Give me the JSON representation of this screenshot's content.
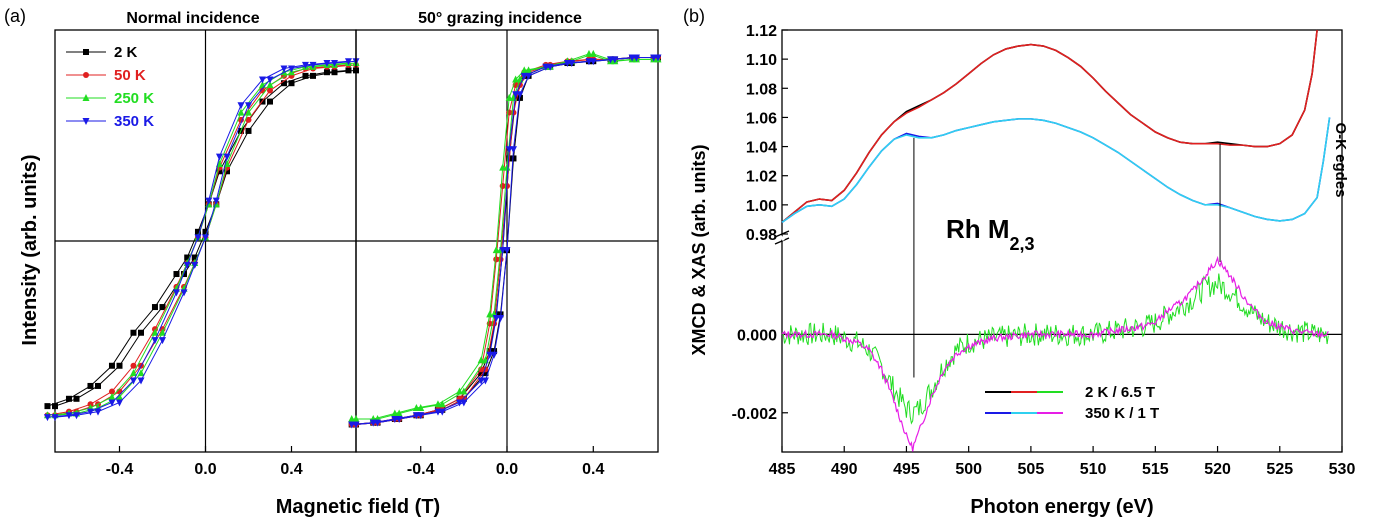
{
  "colors": {
    "black": "#000000",
    "red": "#e02020",
    "green": "#22dd22",
    "blue": "#1a1ae6",
    "cyan": "#2fd0f0",
    "magenta": "#e61ee6"
  },
  "panel_a": {
    "label": "(a)",
    "title_left": "Normal incidence",
    "title_right": "50° grazing incidence",
    "xlabel": "Magnetic field (T)",
    "ylabel": "Intensity (arb. units)"
  },
  "panel_b": {
    "label": "(b)",
    "xlabel": "Photon energy (eV)",
    "ylabel": "XMCD & XAS (arb. units)",
    "annotation": "Rh M",
    "annotation_sub": "2,3",
    "edge_label": "O-K egdes"
  },
  "chart_data": [
    {
      "type": "line",
      "title": "Normal incidence",
      "xlabel": "Magnetic field (T)",
      "ylabel": "Intensity (arb. units)",
      "xlim": [
        -0.7,
        0.7
      ],
      "ylim": [
        -1.15,
        1.15
      ],
      "xticks": [
        "-0.4",
        "0.0",
        "0.4"
      ],
      "xtick_values": [
        -0.4,
        0.0,
        0.4
      ],
      "legend": "top-left",
      "series": [
        {
          "name": "2 K",
          "color": "#000000",
          "marker": "square",
          "x": [
            -0.7,
            -0.6,
            -0.5,
            -0.4,
            -0.3,
            -0.2,
            -0.1,
            -0.05,
            0.0,
            0.05,
            0.1,
            0.2,
            0.3,
            0.4,
            0.5,
            0.6,
            0.7
          ],
          "y": [
            -0.9,
            -0.86,
            -0.79,
            -0.68,
            -0.5,
            -0.36,
            -0.18,
            -0.09,
            0.05,
            0.2,
            0.38,
            0.6,
            0.76,
            0.86,
            0.9,
            0.92,
            0.93
          ]
        },
        {
          "name": "50 K",
          "color": "#e02020",
          "marker": "circle",
          "x": [
            -0.7,
            -0.6,
            -0.5,
            -0.4,
            -0.3,
            -0.2,
            -0.1,
            -0.05,
            0.0,
            0.05,
            0.1,
            0.2,
            0.3,
            0.4,
            0.5,
            0.6,
            0.7
          ],
          "y": [
            -0.95,
            -0.93,
            -0.89,
            -0.82,
            -0.68,
            -0.48,
            -0.25,
            -0.12,
            0.02,
            0.2,
            0.4,
            0.66,
            0.82,
            0.9,
            0.94,
            0.95,
            0.96
          ]
        },
        {
          "name": "250 K",
          "color": "#22dd22",
          "marker": "triangle",
          "x": [
            -0.7,
            -0.6,
            -0.5,
            -0.4,
            -0.3,
            -0.2,
            -0.1,
            -0.05,
            0.0,
            0.05,
            0.1,
            0.2,
            0.3,
            0.4,
            0.5,
            0.6,
            0.7
          ],
          "y": [
            -0.95,
            -0.94,
            -0.91,
            -0.85,
            -0.72,
            -0.5,
            -0.26,
            -0.12,
            0.02,
            0.2,
            0.42,
            0.7,
            0.85,
            0.92,
            0.95,
            0.96,
            0.97
          ]
        },
        {
          "name": "350 K",
          "color": "#1a1ae6",
          "marker": "triangle-down",
          "x": [
            -0.7,
            -0.6,
            -0.5,
            -0.4,
            -0.3,
            -0.2,
            -0.1,
            -0.05,
            0.0,
            0.05,
            0.1,
            0.2,
            0.3,
            0.4,
            0.5,
            0.6,
            0.7
          ],
          "y": [
            -0.96,
            -0.95,
            -0.93,
            -0.88,
            -0.76,
            -0.54,
            -0.28,
            -0.13,
            0.02,
            0.22,
            0.46,
            0.74,
            0.88,
            0.94,
            0.96,
            0.97,
            0.98
          ]
        }
      ]
    },
    {
      "type": "line",
      "title": "50° grazing incidence",
      "xlabel": "Magnetic field (T)",
      "xlim": [
        -0.7,
        0.7
      ],
      "ylim": [
        -1.15,
        1.15
      ],
      "xticks": [
        "-0.4",
        "0.0",
        "0.4"
      ],
      "xtick_values": [
        -0.4,
        0.0,
        0.4
      ],
      "series": [
        {
          "name": "2 K",
          "color": "#000000",
          "marker": "square",
          "x": [
            -0.7,
            -0.6,
            -0.5,
            -0.4,
            -0.3,
            -0.2,
            -0.1,
            -0.06,
            -0.03,
            0.0,
            0.03,
            0.06,
            0.1,
            0.2,
            0.3,
            0.4,
            0.5,
            0.6,
            0.7
          ],
          "y": [
            -1.0,
            -0.99,
            -0.97,
            -0.95,
            -0.92,
            -0.86,
            -0.72,
            -0.6,
            -0.4,
            -0.05,
            0.45,
            0.78,
            0.9,
            0.95,
            0.97,
            0.98,
            0.99,
            1.0,
            1.0
          ]
        },
        {
          "name": "50 K",
          "color": "#e02020",
          "marker": "circle",
          "x": [
            -0.7,
            -0.6,
            -0.5,
            -0.4,
            -0.3,
            -0.2,
            -0.1,
            -0.06,
            -0.03,
            0.0,
            0.03,
            0.06,
            0.1,
            0.2,
            0.3,
            0.4,
            0.5,
            0.6,
            0.7
          ],
          "y": [
            -1.0,
            -0.99,
            -0.97,
            -0.95,
            -0.92,
            -0.86,
            -0.7,
            -0.45,
            -0.1,
            0.3,
            0.7,
            0.85,
            0.92,
            0.96,
            0.98,
            0.99,
            0.99,
            1.0,
            1.0
          ]
        },
        {
          "name": "250 K",
          "color": "#22dd22",
          "marker": "triangle",
          "x": [
            -0.7,
            -0.6,
            -0.5,
            -0.4,
            -0.3,
            -0.2,
            -0.1,
            -0.06,
            -0.03,
            0.0,
            0.03,
            0.06,
            0.1,
            0.2,
            0.3,
            0.4,
            0.5,
            0.6,
            0.7
          ],
          "y": [
            -0.97,
            -0.97,
            -0.94,
            -0.91,
            -0.89,
            -0.82,
            -0.65,
            -0.4,
            -0.05,
            0.4,
            0.78,
            0.88,
            0.93,
            0.95,
            0.98,
            1.02,
            0.98,
            0.99,
            0.99
          ]
        },
        {
          "name": "350 K",
          "color": "#1a1ae6",
          "marker": "triangle-down",
          "x": [
            -0.7,
            -0.6,
            -0.5,
            -0.4,
            -0.3,
            -0.2,
            -0.1,
            -0.06,
            -0.03,
            0.0,
            0.03,
            0.06,
            0.1,
            0.2,
            0.3,
            0.4,
            0.5,
            0.6,
            0.7
          ],
          "y": [
            -1.0,
            -0.99,
            -0.97,
            -0.95,
            -0.93,
            -0.88,
            -0.76,
            -0.62,
            -0.42,
            -0.05,
            0.5,
            0.8,
            0.9,
            0.95,
            0.97,
            0.98,
            0.99,
            1.0,
            1.0
          ]
        }
      ]
    },
    {
      "type": "line",
      "subplot": "XAS",
      "xlabel": "Photon energy (eV)",
      "ylabel": "XMCD & XAS (arb. units)",
      "xlim": [
        485,
        530
      ],
      "ylim": [
        0.98,
        1.12
      ],
      "yticks": [
        "0.98",
        "1.00",
        "1.02",
        "1.04",
        "1.06",
        "1.08",
        "1.10",
        "1.12"
      ],
      "ytick_values": [
        0.98,
        1.0,
        1.02,
        1.04,
        1.06,
        1.08,
        1.1,
        1.12
      ],
      "series": [
        {
          "name": "2 K / 6.5 T (black)",
          "color": "#000000",
          "x": [
            485,
            486,
            487,
            488,
            489,
            490,
            491,
            492,
            493,
            494,
            495,
            496,
            497,
            498,
            499,
            500,
            501,
            502,
            503,
            504,
            505,
            506,
            507,
            508,
            509,
            510,
            511,
            512,
            513,
            514,
            515,
            516,
            517,
            518,
            519,
            520,
            521,
            522,
            523,
            524,
            525,
            526,
            527,
            527.6,
            528
          ],
          "y": [
            0.988,
            0.995,
            1.002,
            1.004,
            1.003,
            1.01,
            1.022,
            1.036,
            1.048,
            1.057,
            1.064,
            1.068,
            1.072,
            1.077,
            1.083,
            1.09,
            1.097,
            1.103,
            1.107,
            1.109,
            1.11,
            1.109,
            1.106,
            1.101,
            1.095,
            1.087,
            1.078,
            1.07,
            1.062,
            1.056,
            1.05,
            1.046,
            1.043,
            1.042,
            1.042,
            1.043,
            1.042,
            1.041,
            1.04,
            1.04,
            1.042,
            1.048,
            1.065,
            1.09,
            1.12
          ]
        },
        {
          "name": "2 K / 6.5 T (red)",
          "color": "#e02020",
          "x": [
            485,
            486,
            487,
            488,
            489,
            490,
            491,
            492,
            493,
            494,
            495,
            496,
            497,
            498,
            499,
            500,
            501,
            502,
            503,
            504,
            505,
            506,
            507,
            508,
            509,
            510,
            511,
            512,
            513,
            514,
            515,
            516,
            517,
            518,
            519,
            520,
            521,
            522,
            523,
            524,
            525,
            526,
            527,
            527.6,
            528
          ],
          "y": [
            0.988,
            0.995,
            1.002,
            1.004,
            1.003,
            1.01,
            1.022,
            1.036,
            1.048,
            1.057,
            1.063,
            1.067,
            1.072,
            1.077,
            1.083,
            1.09,
            1.097,
            1.103,
            1.107,
            1.109,
            1.11,
            1.109,
            1.106,
            1.101,
            1.095,
            1.087,
            1.078,
            1.07,
            1.062,
            1.056,
            1.05,
            1.046,
            1.043,
            1.042,
            1.042,
            1.042,
            1.041,
            1.041,
            1.04,
            1.04,
            1.042,
            1.048,
            1.065,
            1.09,
            1.12
          ]
        },
        {
          "name": "350 K / 1 T (blue)",
          "color": "#1a1ae6",
          "x": [
            485,
            486,
            487,
            488,
            489,
            490,
            491,
            492,
            493,
            494,
            495,
            496,
            497,
            498,
            499,
            500,
            501,
            502,
            503,
            504,
            505,
            506,
            507,
            508,
            509,
            510,
            511,
            512,
            513,
            514,
            515,
            516,
            517,
            518,
            519,
            520,
            521,
            522,
            523,
            524,
            525,
            526,
            527,
            528,
            528.5,
            529
          ],
          "y": [
            0.988,
            0.994,
            0.999,
            1.0,
            0.999,
            1.004,
            1.014,
            1.026,
            1.037,
            1.045,
            1.049,
            1.047,
            1.046,
            1.048,
            1.051,
            1.053,
            1.055,
            1.057,
            1.058,
            1.059,
            1.059,
            1.058,
            1.056,
            1.053,
            1.05,
            1.046,
            1.041,
            1.036,
            1.03,
            1.024,
            1.018,
            1.012,
            1.007,
            1.003,
            1.0,
            1.001,
            0.998,
            0.995,
            0.992,
            0.99,
            0.989,
            0.99,
            0.994,
            1.005,
            1.03,
            1.06
          ]
        },
        {
          "name": "350 K / 1 T (cyan)",
          "color": "#2fd0f0",
          "x": [
            485,
            486,
            487,
            488,
            489,
            490,
            491,
            492,
            493,
            494,
            495,
            496,
            497,
            498,
            499,
            500,
            501,
            502,
            503,
            504,
            505,
            506,
            507,
            508,
            509,
            510,
            511,
            512,
            513,
            514,
            515,
            516,
            517,
            518,
            519,
            520,
            521,
            522,
            523,
            524,
            525,
            526,
            527,
            528,
            528.5,
            529
          ],
          "y": [
            0.988,
            0.994,
            0.999,
            1.0,
            0.999,
            1.004,
            1.014,
            1.026,
            1.037,
            1.045,
            1.048,
            1.046,
            1.046,
            1.048,
            1.051,
            1.053,
            1.055,
            1.057,
            1.058,
            1.059,
            1.059,
            1.058,
            1.056,
            1.053,
            1.05,
            1.046,
            1.041,
            1.036,
            1.03,
            1.024,
            1.018,
            1.012,
            1.007,
            1.003,
            1.0,
            1.0,
            0.998,
            0.995,
            0.992,
            0.99,
            0.989,
            0.99,
            0.994,
            1.005,
            1.03,
            1.06
          ]
        }
      ]
    },
    {
      "type": "line",
      "subplot": "XMCD",
      "xlabel": "Photon energy (eV)",
      "xlim": [
        485,
        530
      ],
      "ylim": [
        -0.003,
        0.0021
      ],
      "xticks": [
        "485",
        "490",
        "495",
        "500",
        "505",
        "510",
        "515",
        "520",
        "525",
        "530"
      ],
      "xtick_values": [
        485,
        490,
        495,
        500,
        505,
        510,
        515,
        520,
        525,
        530
      ],
      "yticks": [
        "-0.002",
        "0.000"
      ],
      "ytick_values": [
        -0.002,
        0.0
      ],
      "legend": "bottom-center",
      "series": [
        {
          "name": "2 K / 6.5 T",
          "color": "#22dd22",
          "x": [
            485,
            487,
            489,
            490,
            491,
            492,
            493,
            494,
            495,
            495.5,
            496,
            497,
            498,
            499,
            500,
            502,
            505,
            508,
            510,
            512,
            514,
            515,
            516,
            517,
            518,
            519,
            520,
            521,
            522,
            523,
            524,
            526,
            528,
            529
          ],
          "y": [
            0.0,
            0.0,
            0.0,
            -0.0001,
            -0.0002,
            -0.0004,
            -0.0008,
            -0.0014,
            -0.0019,
            -0.002,
            -0.0019,
            -0.0014,
            -0.0008,
            -0.0004,
            -0.0002,
            -0.0001,
            0.0,
            0.0,
            0.0,
            0.0001,
            0.0002,
            0.0003,
            0.0005,
            0.0007,
            0.0009,
            0.0012,
            0.0013,
            0.0011,
            0.0008,
            0.0005,
            0.0003,
            0.0001,
            0.0,
            0.0
          ]
        },
        {
          "name": "350 K / 1 T",
          "color": "#e61ee6",
          "x": [
            485,
            487,
            489,
            490,
            491,
            492,
            493,
            494,
            495,
            495.5,
            496,
            497,
            498,
            499,
            500,
            502,
            505,
            508,
            510,
            512,
            514,
            515,
            516,
            517,
            518,
            519,
            520,
            521,
            522,
            523,
            524,
            526,
            528,
            529
          ],
          "y": [
            0.0,
            0.0,
            0.0,
            -0.0001,
            -0.0002,
            -0.0004,
            -0.0009,
            -0.0017,
            -0.0026,
            -0.0029,
            -0.0025,
            -0.0016,
            -0.0009,
            -0.0005,
            -0.0003,
            -0.0001,
            0.0,
            0.0,
            0.0,
            0.0001,
            0.0002,
            0.0003,
            0.0006,
            0.0008,
            0.0011,
            0.0015,
            0.0019,
            0.0015,
            0.001,
            0.0006,
            0.0003,
            0.0001,
            0.0,
            0.0
          ]
        }
      ]
    }
  ]
}
